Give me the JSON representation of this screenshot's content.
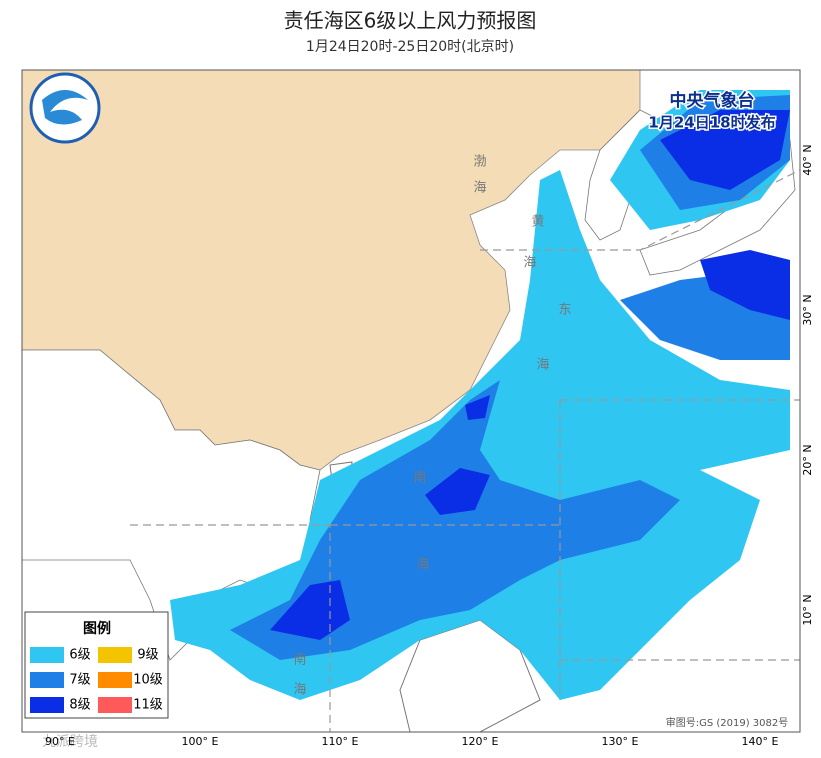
{
  "header": {
    "title": "责任海区6级以上风力预报图",
    "subtitle": "1月24日20时-25日20时(北京时)"
  },
  "issuer": {
    "name": "中央气象台",
    "issued": "1月24日18时发布"
  },
  "legend": {
    "title": "图例",
    "items": [
      {
        "label": "6级",
        "color": "#2fc6f2"
      },
      {
        "label": "9级",
        "color": "#f5c400"
      },
      {
        "label": "7级",
        "color": "#1e7fe6"
      },
      {
        "label": "10级",
        "color": "#ff8c00"
      },
      {
        "label": "8级",
        "color": "#0a2ee6"
      },
      {
        "label": "11级",
        "color": "#ff5a5a"
      }
    ]
  },
  "axes": {
    "longitudes": [
      "90° E",
      "100° E",
      "110° E",
      "120° E",
      "130° E",
      "140° E"
    ],
    "latitudes": [
      "40° N",
      "30° N",
      "20° N",
      "10° N"
    ]
  },
  "sea_labels": [
    "渤",
    "海",
    "黄",
    "海",
    "东",
    "海",
    "南",
    "海",
    "南",
    "海"
  ],
  "footer": {
    "review_number": "审图号:GS (2019) 3082号",
    "watermark": "九派跨境"
  }
}
